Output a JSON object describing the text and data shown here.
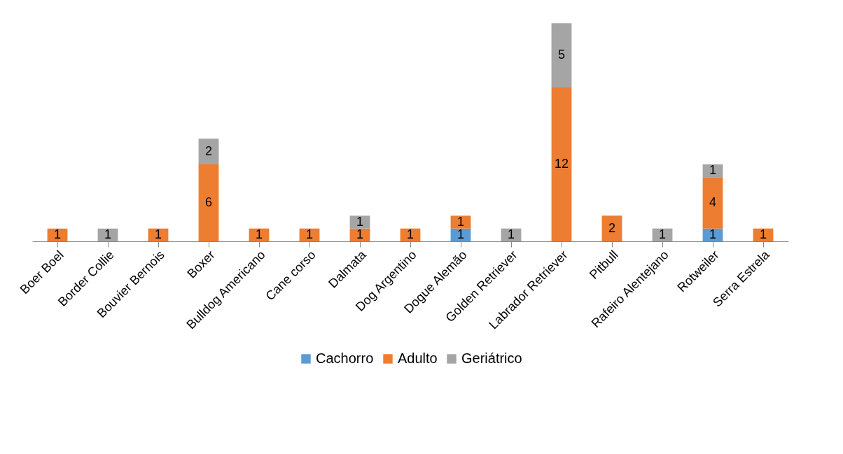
{
  "chart_data": {
    "type": "bar",
    "stacked": true,
    "data_labels": true,
    "legend": "bottom",
    "categories": [
      "Boer Boel",
      "Border Collie",
      "Bouvier Bernois",
      "Boxer",
      "Bulldog Americano",
      "Cane corso",
      "Dalmata",
      "Dog Argentino",
      "Dogue Alemão",
      "Golden Retriever",
      "Labrador Retriever",
      "Pitbull",
      "Rafeiro Alentejano",
      "Rotweiler",
      "Serra Estrela"
    ],
    "series": [
      {
        "name": "Cachorro",
        "color": "#5b9bd5",
        "values": [
          null,
          null,
          null,
          null,
          null,
          null,
          null,
          null,
          1,
          null,
          null,
          null,
          null,
          1,
          null
        ]
      },
      {
        "name": "Adulto",
        "color": "#ed7d31",
        "values": [
          1,
          null,
          1,
          6,
          1,
          1,
          1,
          1,
          1,
          null,
          12,
          2,
          null,
          4,
          1
        ]
      },
      {
        "name": "Geriátrico",
        "color": "#a5a5a5",
        "values": [
          null,
          1,
          null,
          2,
          null,
          null,
          1,
          null,
          null,
          1,
          5,
          null,
          1,
          1,
          null
        ]
      }
    ]
  }
}
